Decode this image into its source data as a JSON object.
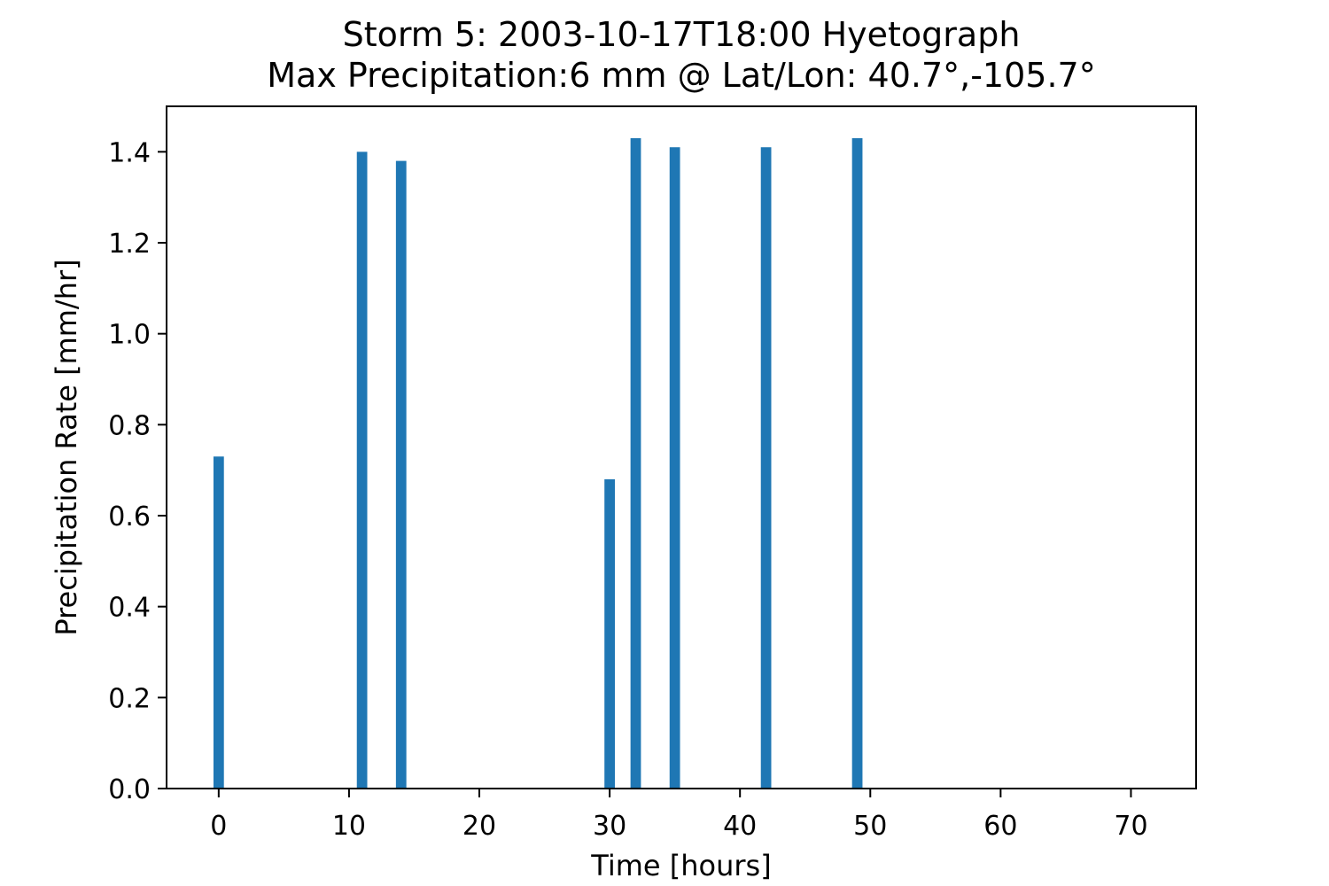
{
  "chart_data": {
    "type": "bar",
    "title": "Storm 5: 2003-10-17T18:00 Hyetograph",
    "subtitle": "Max Precipitation:6 mm @ Lat/Lon:  40.7°,-105.7°",
    "xlabel": "Time [hours]",
    "ylabel": "Precipitation Rate [mm/hr]",
    "xlim": [
      -4,
      75
    ],
    "ylim": [
      0,
      1.5
    ],
    "xticks": [
      0,
      10,
      20,
      30,
      40,
      50,
      60,
      70
    ],
    "xtick_labels": [
      "0",
      "10",
      "20",
      "30",
      "40",
      "50",
      "60",
      "70"
    ],
    "yticks": [
      0,
      0.2,
      0.4,
      0.6,
      0.8,
      1.0,
      1.2,
      1.4
    ],
    "ytick_labels": [
      "0.0",
      "0.2",
      "0.4",
      "0.6",
      "0.8",
      "1.0",
      "1.2",
      "1.4"
    ],
    "bar_width": 0.8,
    "x": [
      0,
      11,
      14,
      30,
      32,
      35,
      42,
      49
    ],
    "values": [
      0.73,
      1.4,
      1.38,
      0.68,
      1.43,
      1.41,
      1.41,
      1.43
    ],
    "color": "#1f77b4",
    "grid": false,
    "legend": false
  }
}
